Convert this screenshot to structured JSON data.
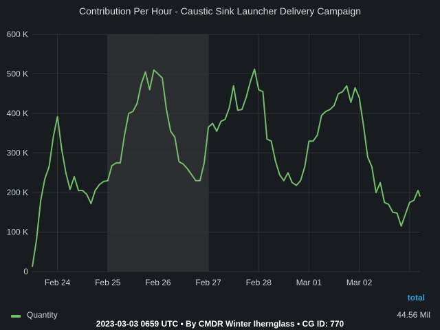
{
  "chart_data": {
    "type": "line",
    "title": "Contribution Per Hour - Caustic Sink Launcher Delivery Campaign",
    "xlabel": "",
    "ylabel": "",
    "x_tick_labels": [
      "Feb 24",
      "Feb 25",
      "Feb 26",
      "Feb 27",
      "Feb 28",
      "Mar 01",
      "Mar 02"
    ],
    "x_range": [
      "2023-02-23 12:00",
      "2023-03-03 05:00"
    ],
    "y_tick_labels": [
      "0",
      "100 K",
      "200 K",
      "300 K",
      "400 K",
      "500 K",
      "600 K"
    ],
    "ylim": [
      0,
      600000
    ],
    "grid": true,
    "highlight_range": [
      "2023-02-25 00:00",
      "2023-02-27 00:00"
    ],
    "legend": {
      "placement": "bottom",
      "header": "total"
    },
    "series": [
      {
        "name": "Quantity",
        "color": "#73bf69",
        "total_label": "44.56 Mil",
        "points": [
          [
            "2023-02-23 12:00",
            12000
          ],
          [
            "2023-02-23 14:00",
            80000
          ],
          [
            "2023-02-23 16:00",
            180000
          ],
          [
            "2023-02-23 18:00",
            235000
          ],
          [
            "2023-02-23 20:00",
            265000
          ],
          [
            "2023-02-23 22:00",
            340000
          ],
          [
            "2023-02-24 00:00",
            392000
          ],
          [
            "2023-02-24 02:00",
            310000
          ],
          [
            "2023-02-24 04:00",
            250000
          ],
          [
            "2023-02-24 06:00",
            208000
          ],
          [
            "2023-02-24 08:00",
            240000
          ],
          [
            "2023-02-24 10:00",
            205000
          ],
          [
            "2023-02-24 12:00",
            205000
          ],
          [
            "2023-02-24 14:00",
            195000
          ],
          [
            "2023-02-24 16:00",
            172000
          ],
          [
            "2023-02-24 18:00",
            205000
          ],
          [
            "2023-02-24 20:00",
            220000
          ],
          [
            "2023-02-24 22:00",
            228000
          ],
          [
            "2023-02-25 00:00",
            230000
          ],
          [
            "2023-02-25 02:00",
            268000
          ],
          [
            "2023-02-25 04:00",
            275000
          ],
          [
            "2023-02-25 06:00",
            275000
          ],
          [
            "2023-02-25 08:00",
            345000
          ],
          [
            "2023-02-25 10:00",
            400000
          ],
          [
            "2023-02-25 12:00",
            405000
          ],
          [
            "2023-02-25 14:00",
            425000
          ],
          [
            "2023-02-25 16:00",
            475000
          ],
          [
            "2023-02-25 18:00",
            505000
          ],
          [
            "2023-02-25 20:00",
            460000
          ],
          [
            "2023-02-25 22:00",
            510000
          ],
          [
            "2023-02-26 00:00",
            500000
          ],
          [
            "2023-02-26 02:00",
            490000
          ],
          [
            "2023-02-26 04:00",
            410000
          ],
          [
            "2023-02-26 06:00",
            355000
          ],
          [
            "2023-02-26 08:00",
            340000
          ],
          [
            "2023-02-26 10:00",
            278000
          ],
          [
            "2023-02-26 12:00",
            272000
          ],
          [
            "2023-02-26 14:00",
            260000
          ],
          [
            "2023-02-26 16:00",
            245000
          ],
          [
            "2023-02-26 18:00",
            230000
          ],
          [
            "2023-02-26 20:00",
            230000
          ],
          [
            "2023-02-26 22:00",
            275000
          ],
          [
            "2023-02-27 00:00",
            365000
          ],
          [
            "2023-02-27 02:00",
            375000
          ],
          [
            "2023-02-27 04:00",
            355000
          ],
          [
            "2023-02-27 06:00",
            380000
          ],
          [
            "2023-02-27 08:00",
            385000
          ],
          [
            "2023-02-27 10:00",
            415000
          ],
          [
            "2023-02-27 12:00",
            470000
          ],
          [
            "2023-02-27 14:00",
            408000
          ],
          [
            "2023-02-27 16:00",
            410000
          ],
          [
            "2023-02-27 18:00",
            440000
          ],
          [
            "2023-02-27 20:00",
            480000
          ],
          [
            "2023-02-27 22:00",
            512000
          ],
          [
            "2023-02-28 00:00",
            460000
          ],
          [
            "2023-02-28 02:00",
            455000
          ],
          [
            "2023-02-28 04:00",
            335000
          ],
          [
            "2023-02-28 06:00",
            330000
          ],
          [
            "2023-02-28 08:00",
            280000
          ],
          [
            "2023-02-28 10:00",
            245000
          ],
          [
            "2023-02-28 12:00",
            230000
          ],
          [
            "2023-02-28 14:00",
            250000
          ],
          [
            "2023-02-28 16:00",
            225000
          ],
          [
            "2023-02-28 18:00",
            218000
          ],
          [
            "2023-02-28 20:00",
            230000
          ],
          [
            "2023-02-28 22:00",
            265000
          ],
          [
            "2023-03-01 00:00",
            330000
          ],
          [
            "2023-03-01 02:00",
            330000
          ],
          [
            "2023-03-01 04:00",
            345000
          ],
          [
            "2023-03-01 06:00",
            395000
          ],
          [
            "2023-03-01 08:00",
            405000
          ],
          [
            "2023-03-01 10:00",
            410000
          ],
          [
            "2023-03-01 12:00",
            420000
          ],
          [
            "2023-03-01 14:00",
            450000
          ],
          [
            "2023-03-01 16:00",
            455000
          ],
          [
            "2023-03-01 18:00",
            470000
          ],
          [
            "2023-03-01 20:00",
            428000
          ],
          [
            "2023-03-01 22:00",
            465000
          ],
          [
            "2023-03-02 00:00",
            440000
          ],
          [
            "2023-03-02 02:00",
            370000
          ],
          [
            "2023-03-02 04:00",
            290000
          ],
          [
            "2023-03-02 06:00",
            265000
          ],
          [
            "2023-03-02 08:00",
            200000
          ],
          [
            "2023-03-02 10:00",
            225000
          ],
          [
            "2023-03-02 12:00",
            175000
          ],
          [
            "2023-03-02 14:00",
            170000
          ],
          [
            "2023-03-02 16:00",
            150000
          ],
          [
            "2023-03-02 18:00",
            148000
          ],
          [
            "2023-03-02 20:00",
            115000
          ],
          [
            "2023-03-02 22:00",
            145000
          ],
          [
            "2023-03-03 00:00",
            175000
          ],
          [
            "2023-03-03 02:00",
            180000
          ],
          [
            "2023-03-03 04:00",
            205000
          ],
          [
            "2023-03-03 05:00",
            190000
          ]
        ]
      }
    ]
  },
  "legend": {
    "header": "total",
    "series_name": "Quantity",
    "total": "44.56 Mil",
    "color": "#73bf69"
  },
  "footer": "2023-03-03 0659 UTC • By CMDR Winter Ihernglass • CG ID: 770",
  "colors": {
    "background": "#181b1f",
    "grid": "#2f3237",
    "highlight": "#2c2d30",
    "line": "#73bf69",
    "accent": "#33a2e5"
  }
}
